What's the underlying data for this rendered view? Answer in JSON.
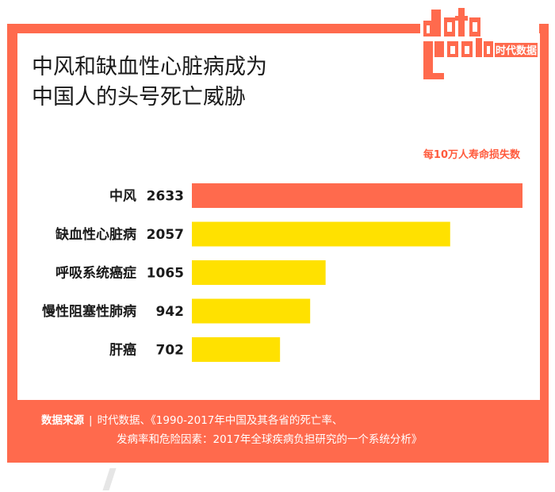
{
  "title_lines": [
    "中风和缺血性心脏病成为",
    "中国人的头号死亡威胁"
  ],
  "logo": {
    "text_en": "data good",
    "text_cn": "时代数据"
  },
  "chart_data": {
    "type": "bar",
    "orientation": "horizontal",
    "metric_label": "每10万人寿命损失数",
    "categories": [
      "中风",
      "缺血性心脏病",
      "呼吸系统癌症",
      "慢性阻塞性肺病",
      "肝癌"
    ],
    "values": [
      2633,
      2057,
      1065,
      942,
      702
    ],
    "value_labels": [
      "2633",
      "2057",
      "1065",
      "942",
      "702"
    ],
    "bar_colors": [
      "#ff6a4d",
      "#ffe100",
      "#ffe100",
      "#ffe100",
      "#ffe100"
    ],
    "xlim": [
      0,
      2633
    ],
    "grid": false,
    "legend": "none"
  },
  "footer": {
    "source_label": "数据来源",
    "separator": "|",
    "line1": "时代数据、《1990-2017年中国及其各省的死亡率、",
    "line2": "发病率和危险因素：2017年全球疾病负担研究的一个系统分析》"
  },
  "colors": {
    "accent": "#ff6a4d",
    "bar": "#ffe100",
    "text": "#1a1a1a"
  }
}
